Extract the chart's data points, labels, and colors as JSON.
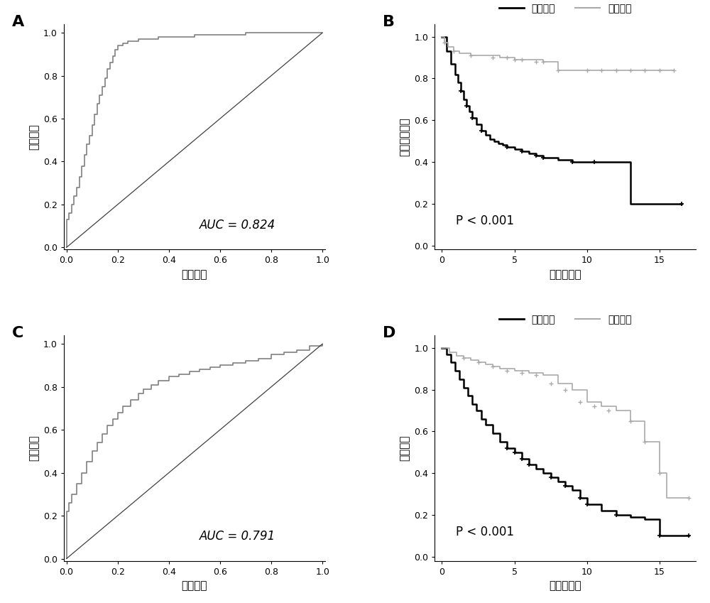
{
  "panel_A": {
    "label": "A",
    "auc": "AUC = 0.824",
    "xlabel": "假阳性率",
    "ylabel": "真阳性率",
    "roc_color": "#808080",
    "diag_color": "#404040"
  },
  "panel_B": {
    "label": "B",
    "pvalue": "P < 0.001",
    "xlabel": "时间（年）",
    "ylabel": "无复发生存率",
    "high_color": "#000000",
    "low_color": "#aaaaaa",
    "high_label": "高风险组",
    "low_label": "低风险组"
  },
  "panel_C": {
    "label": "C",
    "auc": "AUC = 0.791",
    "xlabel": "假阳性率",
    "ylabel": "真阳性率",
    "roc_color": "#808080",
    "diag_color": "#404040"
  },
  "panel_D": {
    "label": "D",
    "pvalue": "P < 0.001",
    "xlabel": "时间（年）",
    "ylabel": "总生存率",
    "high_color": "#000000",
    "low_color": "#aaaaaa",
    "high_label": "高风险组",
    "low_label": "低风险组"
  },
  "background_color": "#ffffff",
  "panel_label_fontsize": 16,
  "axis_label_fontsize": 11,
  "tick_fontsize": 9,
  "auc_fontsize": 12,
  "pvalue_fontsize": 12,
  "legend_fontsize": 10
}
